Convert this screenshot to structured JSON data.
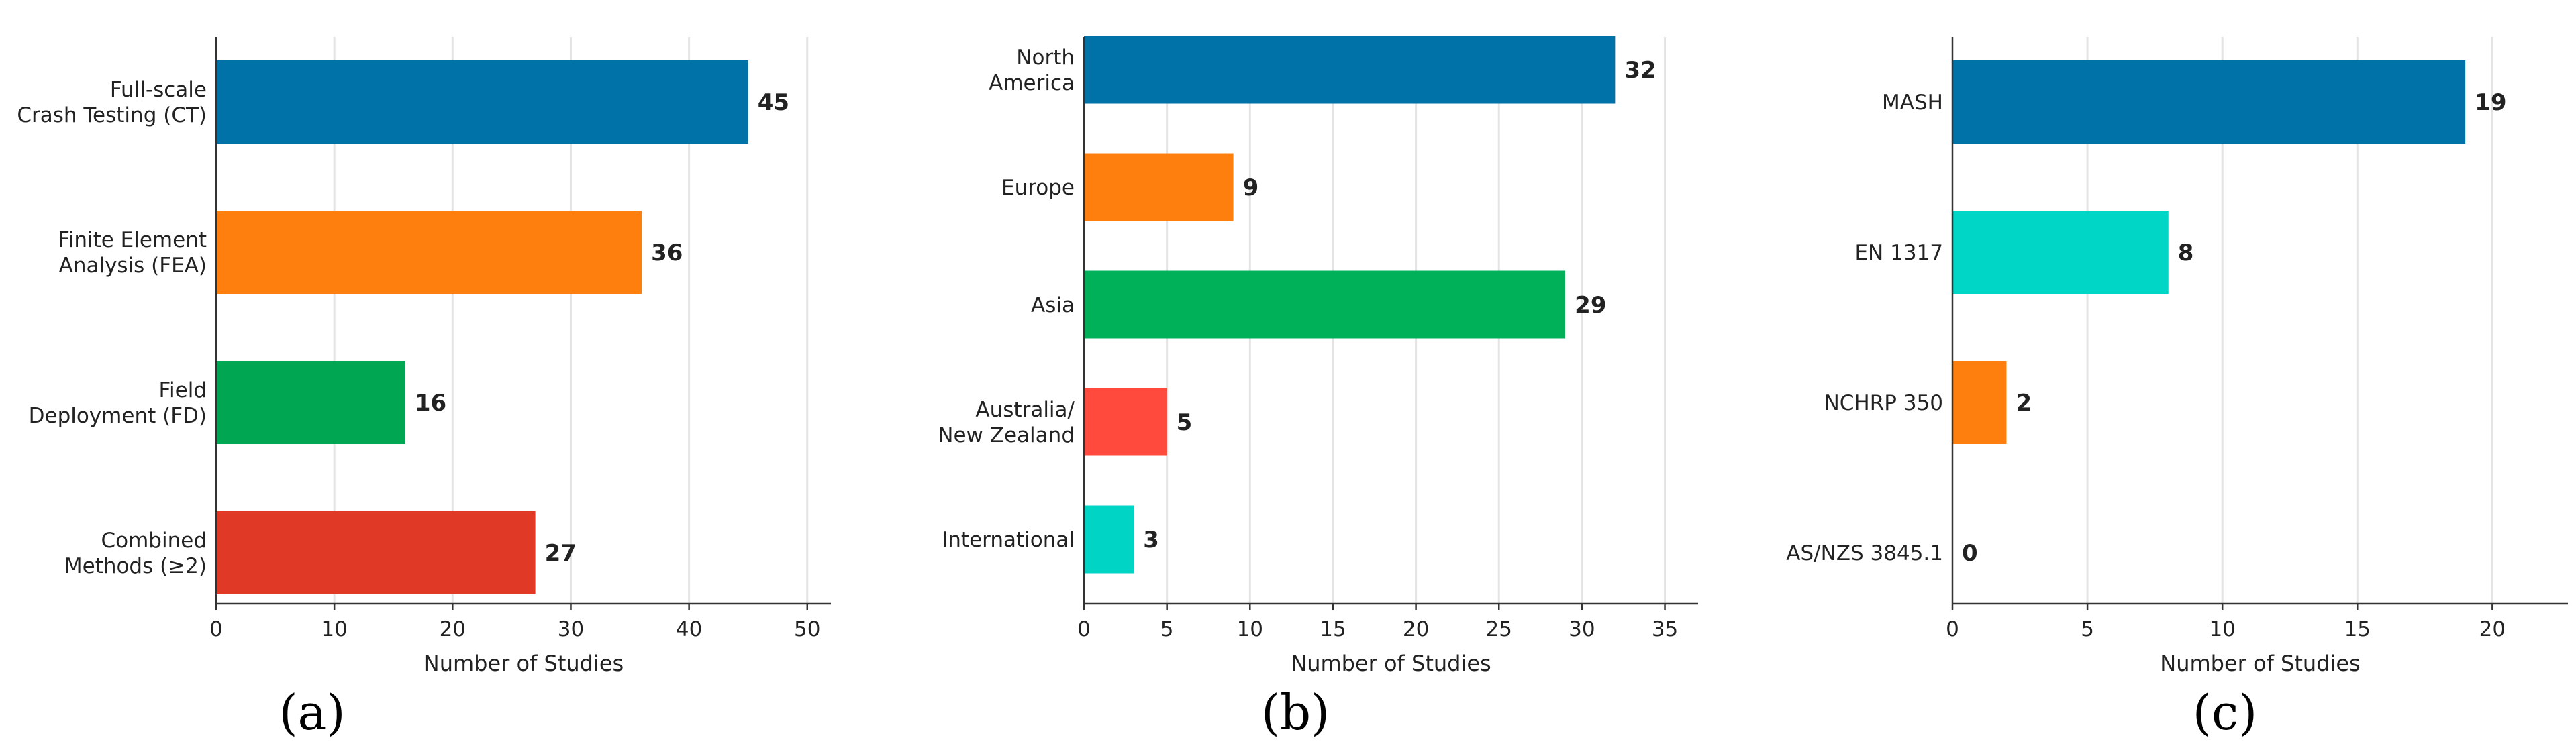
{
  "chart_data": [
    {
      "type": "bar",
      "orientation": "horizontal",
      "categories": [
        "Full-scale\nCrash Testing (CT)",
        "Finite Element\nAnalysis (FEA)",
        "Field\nDeployment (FD)",
        "Combined\nMethods (≥2)"
      ],
      "values": [
        45,
        36,
        16,
        27
      ],
      "colors": [
        "#0072a8",
        "#ff7f0e",
        "#00a651",
        "#e03a27"
      ],
      "xlabel": "Number of Studies",
      "xlim": [
        0,
        52
      ],
      "xticks": [
        0,
        10,
        20,
        30,
        40,
        50
      ],
      "grid": "vertical",
      "panel_label": "a"
    },
    {
      "type": "bar",
      "orientation": "horizontal",
      "categories": [
        "North\nAmerica",
        "Europe",
        "Asia",
        "Australia/\nNew Zealand",
        "International"
      ],
      "values": [
        32,
        9,
        29,
        5,
        3
      ],
      "colors": [
        "#0072a8",
        "#ff7f0e",
        "#00b159",
        "#ff4a3d",
        "#00d4c4"
      ],
      "xlabel": "Number of Studies",
      "xlim": [
        0,
        37
      ],
      "xticks": [
        0,
        5,
        10,
        15,
        20,
        25,
        30,
        35
      ],
      "grid": "vertical",
      "panel_label": "b"
    },
    {
      "type": "bar",
      "orientation": "horizontal",
      "categories": [
        "MASH",
        "EN 1317",
        "NCHRP 350",
        "AS/NZS 3845.1"
      ],
      "values": [
        19,
        8,
        2,
        0
      ],
      "colors": [
        "#0072a8",
        "#00d6c6",
        "#ff7f0e",
        "#888888"
      ],
      "xlabel": "Number of Studies",
      "xlim": [
        0,
        22.8
      ],
      "xticks": [
        0,
        5,
        10,
        15,
        20
      ],
      "grid": "vertical",
      "panel_label": "c"
    }
  ]
}
